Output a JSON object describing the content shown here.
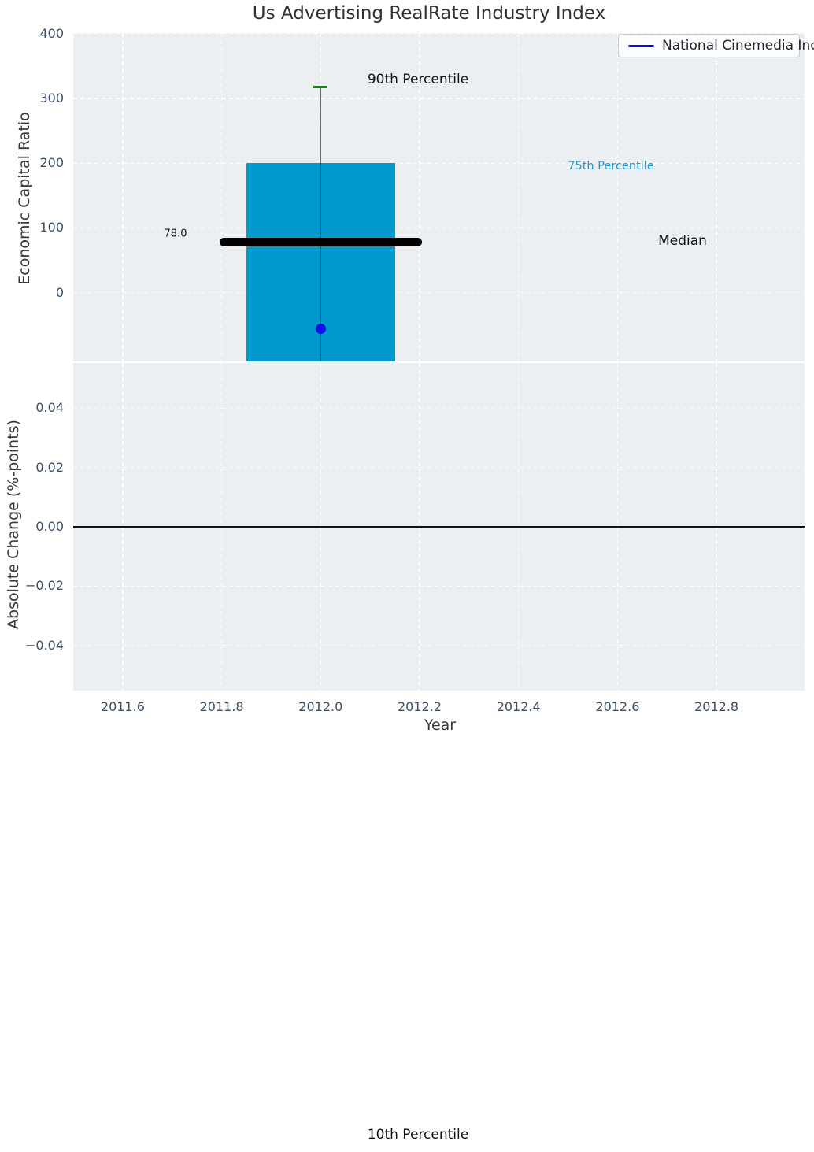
{
  "title": "Us Advertising RealRate Industry Index",
  "legend": {
    "label": "National Cinemedia Inc"
  },
  "annotations": {
    "p90": "90th Percentile",
    "p75": "75th Percentile",
    "median": "Median",
    "median_value": "78.0",
    "p10": "10th Percentile"
  },
  "colors": {
    "bar": "#0299cd",
    "series_line": "#0d0dee",
    "p90_cap": "#068f06",
    "median_line": "#000000",
    "p75_text": "#1b9ad2",
    "panel": "#ebeff2"
  },
  "chart_data": [
    {
      "type": "box",
      "title": "Us Advertising RealRate Industry Index",
      "ylabel": "Economic Capital Ratio",
      "xlabel": "",
      "box": {
        "x": 2012.0,
        "percentile_90": 317,
        "percentile_75": 200,
        "median": 78.0,
        "percentile_10": "off-scale below axis bottom"
      },
      "series": [
        {
          "name": "National Cinemedia Inc",
          "style": "line+marker",
          "color": "#0d0dee",
          "x": [
            2012.0
          ],
          "y": [
            -56
          ]
        }
      ],
      "xlim": [
        2011.5,
        2012.98
      ],
      "ylim": [
        -106,
        401
      ],
      "yticks": [
        0,
        100,
        200,
        300,
        400
      ],
      "ytick_labels": [
        "0",
        "100",
        "200",
        "300",
        "400"
      ],
      "xticks": [
        2011.6,
        2011.8,
        2012.0,
        2012.2,
        2012.4,
        2012.6,
        2012.8
      ],
      "grid": true,
      "legend_position": "upper right"
    },
    {
      "type": "line",
      "ylabel": "Absolute Change (%-points)",
      "xlabel": "Year",
      "series": [],
      "zero_line": 0.0,
      "xlim": [
        2011.5,
        2012.98
      ],
      "ylim": [
        -0.055,
        0.055
      ],
      "yticks": [
        0.04,
        0.02,
        0.0,
        -0.02,
        -0.04
      ],
      "ytick_labels": [
        "0.04",
        "0.02",
        "0.00",
        "−0.02",
        "−0.04"
      ],
      "xticks": [
        2011.6,
        2011.8,
        2012.0,
        2012.2,
        2012.4,
        2012.6,
        2012.8
      ],
      "xtick_labels": [
        "2011.6",
        "2011.8",
        "2012.0",
        "2012.2",
        "2012.4",
        "2012.6",
        "2012.8"
      ],
      "grid": true
    }
  ]
}
